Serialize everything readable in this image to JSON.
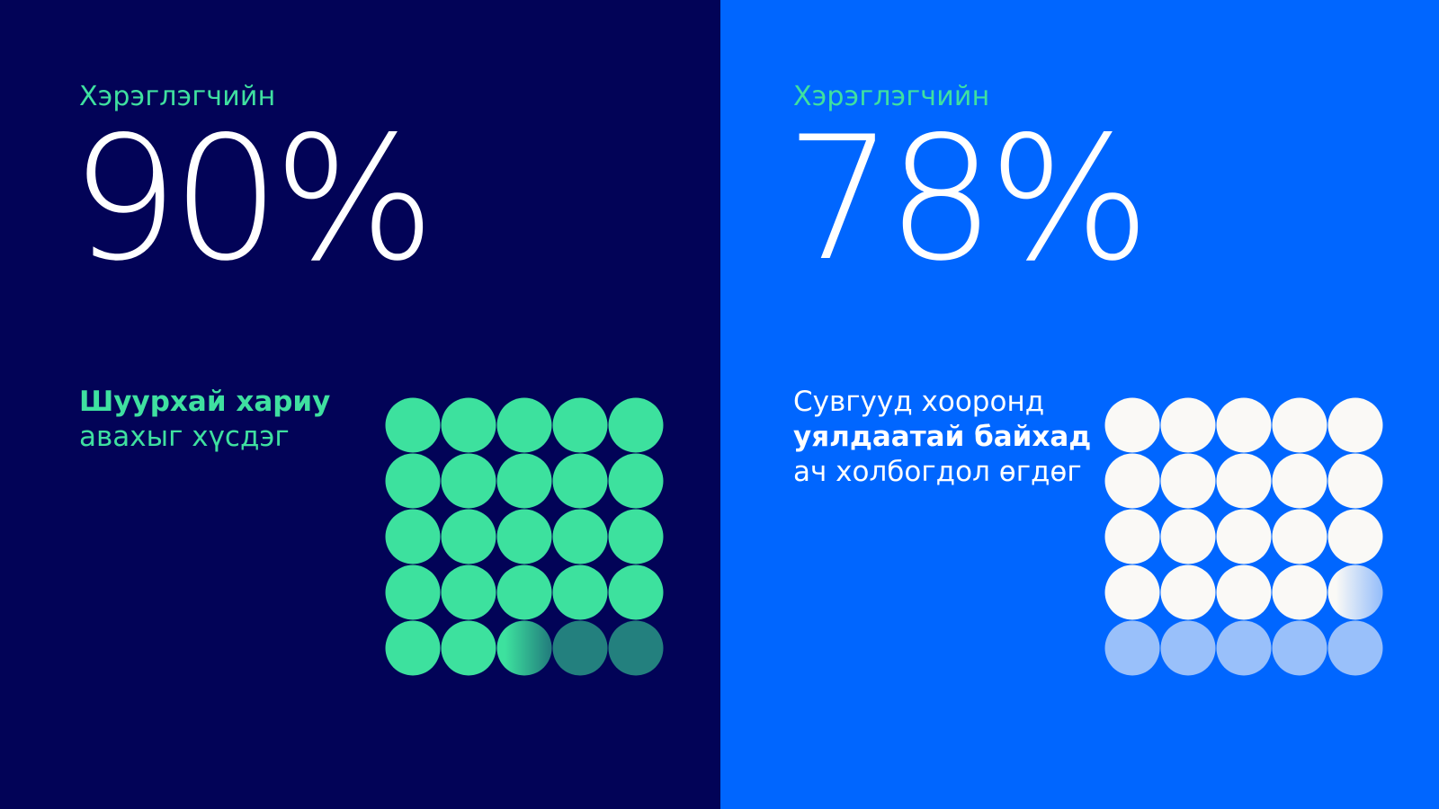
{
  "left_panel": {
    "background": "#020357",
    "label": "Хэрэглэгчийн",
    "label_color": "#3FE0A0",
    "stat": "90%",
    "stat_value": 90,
    "caption_line1": "Шуурхай хариу",
    "caption_line2": "авахыг хүсдэг",
    "caption_color": "#3FE0A0",
    "dot_color": "#3DE19E",
    "dot_faded_color": "#23807E",
    "dots_total": 25,
    "dots_filled": 22.5
  },
  "right_panel": {
    "background": "#0066FF",
    "label": "Хэрэглэгчийн",
    "label_color": "#3FE0A0",
    "stat": "78%",
    "stat_value": 78,
    "caption_line1": "Сувгууд хооронд",
    "caption_line2": "уялдаатай байхад",
    "caption_line3": "ач холбогдол өгдөг",
    "caption_color": "#FFFFFF",
    "dot_color": "#FAF9F6",
    "dot_faded_color": "#99C0FA",
    "dots_total": 25,
    "dots_filled": 19.5
  }
}
